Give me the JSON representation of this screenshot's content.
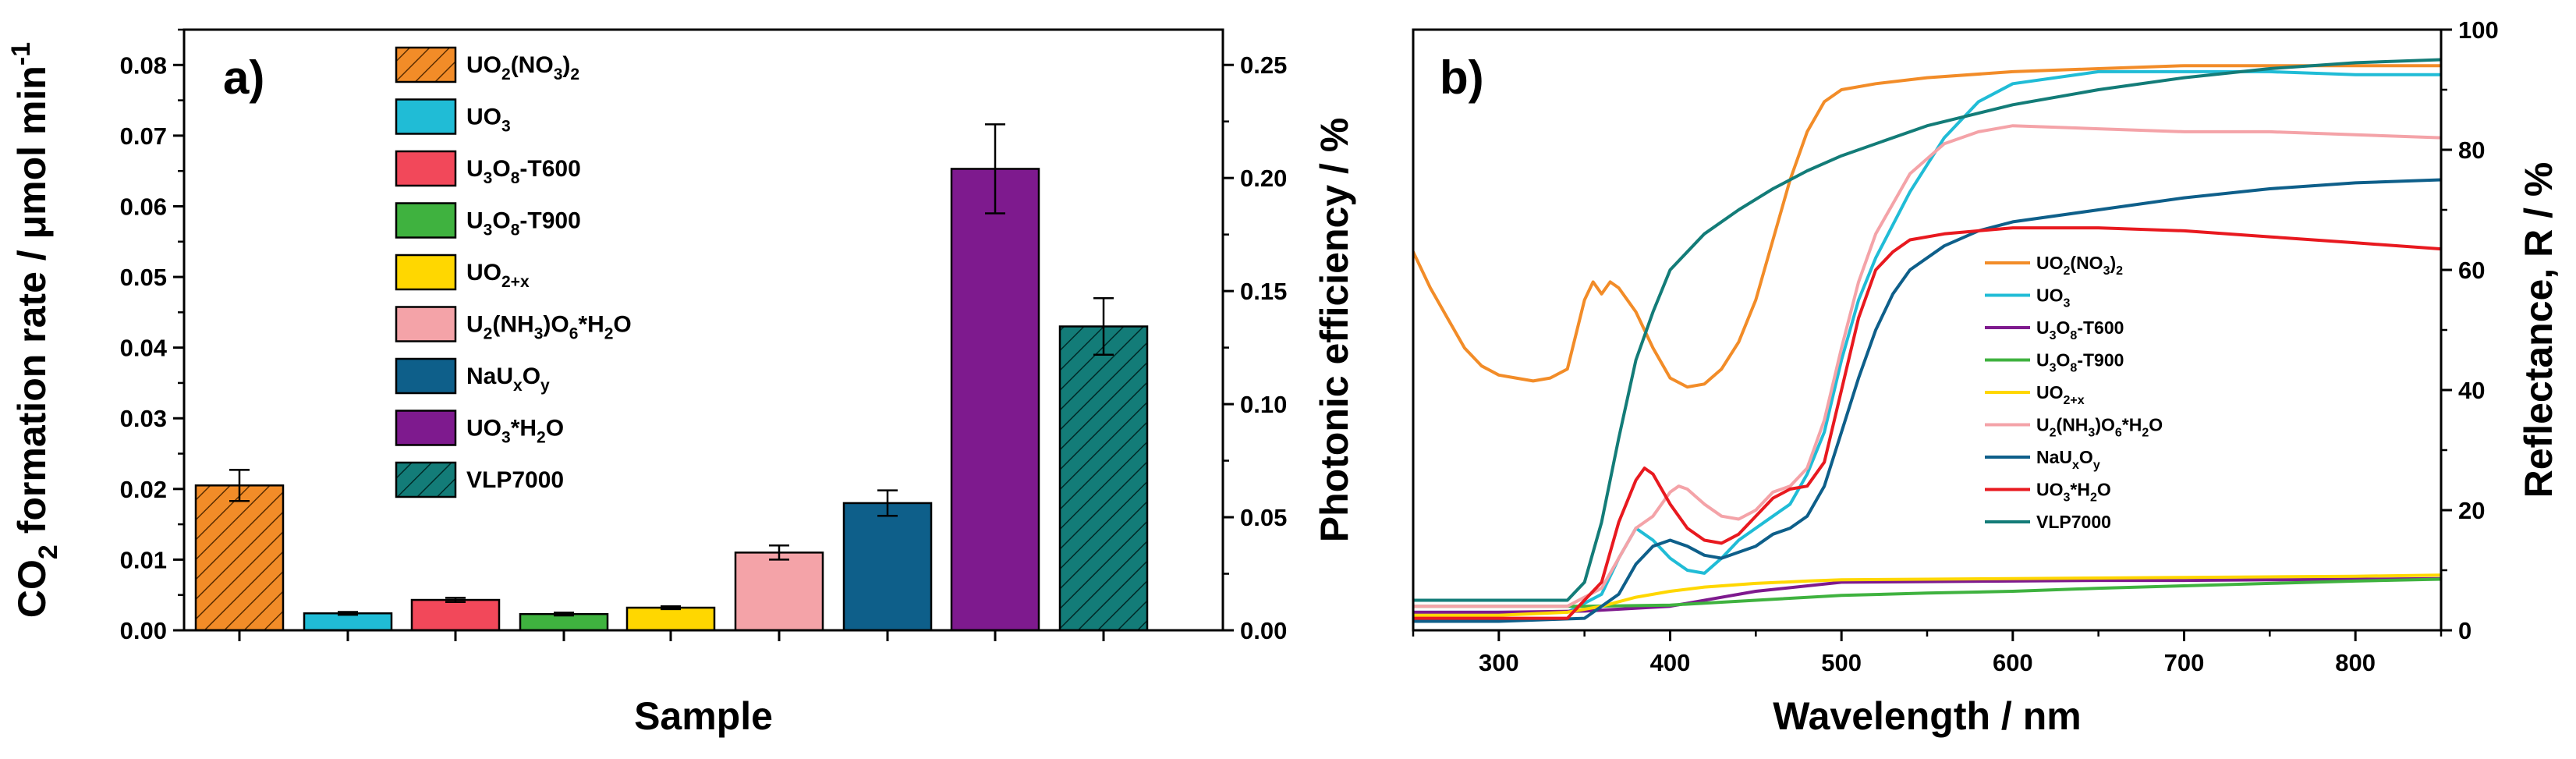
{
  "chart_data": [
    {
      "type": "bar",
      "panel_label": "a)",
      "xlabel": "Sample",
      "ylabel": "CO2 formation rate / μmol min-1",
      "ylabel_parts": [
        "CO",
        "2",
        " formation rate / μmol min",
        "-1"
      ],
      "y2label": "Photonic efficiency / %",
      "ylim": [
        0,
        0.085
      ],
      "y2lim": [
        0,
        0.2656
      ],
      "yticks": [
        "0.00",
        "0.01",
        "0.02",
        "0.03",
        "0.04",
        "0.05",
        "0.06",
        "0.07",
        "0.08"
      ],
      "y2ticks": [
        "0.00",
        "0.05",
        "0.10",
        "0.15",
        "0.20",
        "0.25"
      ],
      "bars": [
        {
          "name": "UO2(NO3)2",
          "label_parts": [
            [
              "UO",
              ""
            ],
            [
              "2",
              "sub"
            ],
            [
              "(NO",
              ""
            ],
            [
              "3",
              "sub"
            ],
            [
              ")",
              ""
            ],
            [
              "2",
              "sub"
            ]
          ],
          "value": 0.0205,
          "error": 0.0022,
          "color": "#f28c28",
          "hatch": true
        },
        {
          "name": "UO3",
          "label_parts": [
            [
              "UO",
              ""
            ],
            [
              "3",
              "sub"
            ]
          ],
          "value": 0.0024,
          "error": 0.0002,
          "color": "#20bcd6",
          "hatch": false
        },
        {
          "name": "U3O8-T600",
          "label_parts": [
            [
              "U",
              ""
            ],
            [
              "3",
              "sub"
            ],
            [
              "O",
              ""
            ],
            [
              "8",
              "sub"
            ],
            [
              "-T600",
              ""
            ]
          ],
          "value": 0.0043,
          "error": 0.0003,
          "color": "#f2485a",
          "hatch": false
        },
        {
          "name": "U3O8-T900",
          "label_parts": [
            [
              "U",
              ""
            ],
            [
              "3",
              "sub"
            ],
            [
              "O",
              ""
            ],
            [
              "8",
              "sub"
            ],
            [
              "-T900",
              ""
            ]
          ],
          "value": 0.0023,
          "error": 0.0002,
          "color": "#3fb23f",
          "hatch": false
        },
        {
          "name": "UO2+x",
          "label_parts": [
            [
              "UO",
              ""
            ],
            [
              "2+x",
              "sub"
            ]
          ],
          "value": 0.0032,
          "error": 0.0002,
          "color": "#ffd700",
          "hatch": false
        },
        {
          "name": "U2(NH3)O6*H2O",
          "label_parts": [
            [
              "U",
              ""
            ],
            [
              "2",
              "sub"
            ],
            [
              "(NH",
              ""
            ],
            [
              "3",
              "sub"
            ],
            [
              ")O",
              ""
            ],
            [
              "6",
              "sub"
            ],
            [
              "*H",
              ""
            ],
            [
              "2",
              "sub"
            ],
            [
              "O",
              ""
            ]
          ],
          "value": 0.011,
          "error": 0.001,
          "color": "#f4a3a8",
          "hatch": false
        },
        {
          "name": "NaUxOy",
          "label_parts": [
            [
              "NaU",
              ""
            ],
            [
              "x",
              "sub"
            ],
            [
              "O",
              ""
            ],
            [
              "y",
              "sub"
            ]
          ],
          "value": 0.018,
          "error": 0.0018,
          "color": "#0e5f8a",
          "hatch": false
        },
        {
          "name": "UO3*H2O",
          "label_parts": [
            [
              "UO",
              ""
            ],
            [
              "3",
              "sub"
            ],
            [
              "*H",
              ""
            ],
            [
              "2",
              "sub"
            ],
            [
              "O",
              ""
            ]
          ],
          "value": 0.0653,
          "error": 0.0063,
          "color": "#7e1a8e",
          "hatch": false
        },
        {
          "name": "VLP7000",
          "label_parts": [
            [
              "VLP7000",
              ""
            ]
          ],
          "value": 0.043,
          "error": 0.004,
          "color": "#137c78",
          "hatch": true
        }
      ]
    },
    {
      "type": "line",
      "panel_label": "b)",
      "xlabel": "Wavelength / nm",
      "ylabel": "Reflectance, R / %",
      "xlim": [
        250,
        850
      ],
      "ylim": [
        0,
        100
      ],
      "xticks": [
        "300",
        "400",
        "500",
        "600",
        "700",
        "800"
      ],
      "yticks": [
        "0",
        "20",
        "40",
        "60",
        "80",
        "100"
      ],
      "series": [
        {
          "name": "UO2(NO3)2",
          "label_parts": [
            [
              "UO",
              ""
            ],
            [
              "2",
              "sub"
            ],
            [
              "(NO",
              ""
            ],
            [
              "3",
              "sub"
            ],
            [
              ")",
              ""
            ],
            [
              "2",
              "sub"
            ]
          ],
          "color": "#f28c28",
          "x": [
            250,
            260,
            270,
            280,
            290,
            300,
            310,
            320,
            330,
            340,
            350,
            355,
            360,
            365,
            370,
            380,
            390,
            400,
            410,
            420,
            430,
            440,
            450,
            460,
            470,
            480,
            490,
            500,
            520,
            550,
            600,
            650,
            700,
            750,
            800,
            850
          ],
          "y": [
            63,
            57,
            52,
            47,
            44,
            42.5,
            42,
            41.5,
            42,
            43.5,
            55,
            58,
            56,
            58,
            57,
            53,
            47,
            42,
            40.5,
            41,
            43.5,
            48,
            55,
            65,
            75,
            83,
            88,
            90,
            91,
            92,
            93,
            93.5,
            94,
            94,
            94,
            94
          ]
        },
        {
          "name": "UO3",
          "label_parts": [
            [
              "UO",
              ""
            ],
            [
              "3",
              "sub"
            ]
          ],
          "color": "#20bcd6",
          "x": [
            250,
            300,
            340,
            360,
            370,
            380,
            390,
            400,
            410,
            420,
            430,
            440,
            450,
            460,
            470,
            480,
            490,
            500,
            510,
            520,
            540,
            560,
            580,
            600,
            650,
            700,
            750,
            800,
            850
          ],
          "y": [
            3,
            3,
            3,
            6,
            12,
            17,
            15,
            12,
            10,
            9.5,
            12,
            15,
            17,
            19,
            21,
            26,
            33,
            45,
            55,
            62,
            73,
            82,
            88,
            91,
            93,
            93,
            93,
            92.5,
            92.5
          ]
        },
        {
          "name": "U3O8-T600",
          "label_parts": [
            [
              "U",
              ""
            ],
            [
              "3",
              "sub"
            ],
            [
              "O",
              ""
            ],
            [
              "8",
              "sub"
            ],
            [
              "-T600",
              ""
            ]
          ],
          "color": "#7e1a8e",
          "x": [
            250,
            300,
            350,
            400,
            450,
            500,
            550,
            600,
            650,
            700,
            750,
            800,
            850
          ],
          "y": [
            3,
            3,
            3.2,
            4,
            6.5,
            8,
            8.1,
            8.2,
            8.3,
            8.3,
            8.4,
            8.5,
            8.6
          ]
        },
        {
          "name": "U3O8-T900",
          "label_parts": [
            [
              "U",
              ""
            ],
            [
              "3",
              "sub"
            ],
            [
              "O",
              ""
            ],
            [
              "8",
              "sub"
            ],
            [
              "-T900",
              ""
            ]
          ],
          "color": "#3fb23f",
          "x": [
            250,
            300,
            350,
            400,
            450,
            500,
            550,
            600,
            650,
            700,
            750,
            800,
            850
          ],
          "y": [
            4,
            4,
            4,
            4.2,
            5,
            5.8,
            6.2,
            6.5,
            7,
            7.4,
            7.8,
            8.2,
            8.5
          ]
        },
        {
          "name": "UO2+x",
          "label_parts": [
            [
              "UO",
              ""
            ],
            [
              "2+x",
              "sub"
            ]
          ],
          "color": "#ffd700",
          "x": [
            250,
            300,
            340,
            360,
            380,
            400,
            420,
            450,
            480,
            500,
            550,
            600,
            650,
            700,
            750,
            800,
            850
          ],
          "y": [
            2.5,
            2.5,
            3,
            4,
            5.5,
            6.5,
            7.2,
            7.8,
            8.2,
            8.4,
            8.5,
            8.6,
            8.7,
            8.8,
            8.9,
            9,
            9.2
          ]
        },
        {
          "name": "U2(NH3)O6*H2O",
          "label_parts": [
            [
              "U",
              ""
            ],
            [
              "2",
              "sub"
            ],
            [
              "(NH",
              ""
            ],
            [
              "3",
              "sub"
            ],
            [
              ")O",
              ""
            ],
            [
              "6",
              "sub"
            ],
            [
              "*H",
              ""
            ],
            [
              "2",
              "sub"
            ],
            [
              "O",
              ""
            ]
          ],
          "color": "#f4a3a8",
          "x": [
            250,
            300,
            340,
            360,
            370,
            380,
            390,
            400,
            405,
            410,
            420,
            430,
            440,
            450,
            460,
            470,
            480,
            490,
            500,
            510,
            520,
            540,
            560,
            580,
            600,
            650,
            700,
            750,
            800,
            850
          ],
          "y": [
            4,
            4,
            4,
            7,
            12,
            17,
            19,
            23,
            24,
            23.5,
            21,
            19,
            18.5,
            20,
            23,
            24,
            27,
            35,
            47,
            58,
            66,
            76,
            81,
            83,
            84,
            83.5,
            83,
            83,
            82.5,
            82
          ]
        },
        {
          "name": "NaUxOy",
          "label_parts": [
            [
              "NaU",
              ""
            ],
            [
              "x",
              "sub"
            ],
            [
              "O",
              ""
            ],
            [
              "y",
              "sub"
            ]
          ],
          "color": "#0e5f8a",
          "x": [
            250,
            300,
            350,
            370,
            380,
            390,
            400,
            410,
            420,
            430,
            440,
            450,
            460,
            470,
            480,
            490,
            500,
            510,
            520,
            530,
            540,
            560,
            580,
            600,
            650,
            700,
            750,
            800,
            850
          ],
          "y": [
            1.5,
            1.5,
            2,
            6,
            11,
            14,
            15,
            14,
            12.5,
            12,
            13,
            14,
            16,
            17,
            19,
            24,
            33,
            42,
            50,
            56,
            60,
            64,
            66.5,
            68,
            70,
            72,
            73.5,
            74.5,
            75
          ]
        },
        {
          "name": "UO3*H2O",
          "label_parts": [
            [
              "UO",
              ""
            ],
            [
              "3",
              "sub"
            ],
            [
              "*H",
              ""
            ],
            [
              "2",
              "sub"
            ],
            [
              "O",
              ""
            ]
          ],
          "color": "#e8191f",
          "x": [
            250,
            300,
            340,
            360,
            370,
            380,
            385,
            390,
            400,
            410,
            420,
            430,
            440,
            450,
            460,
            470,
            480,
            490,
            500,
            510,
            520,
            530,
            540,
            560,
            580,
            600,
            650,
            700,
            750,
            800,
            850
          ],
          "y": [
            2,
            2,
            2,
            8,
            18,
            25,
            27,
            26,
            21,
            17,
            15,
            14.5,
            16,
            19,
            22,
            23.5,
            24,
            28,
            40,
            52,
            60,
            63,
            65,
            66,
            66.5,
            67,
            67,
            66.5,
            65.5,
            64.5,
            63.5
          ]
        },
        {
          "name": "VLP7000",
          "label_parts": [
            [
              "VLP7000",
              ""
            ]
          ],
          "color": "#137c78",
          "x": [
            250,
            300,
            340,
            350,
            360,
            370,
            380,
            390,
            400,
            420,
            440,
            460,
            480,
            500,
            550,
            600,
            650,
            700,
            750,
            800,
            850
          ],
          "y": [
            5,
            5,
            5,
            8,
            18,
            32,
            45,
            53,
            60,
            66,
            70,
            73.5,
            76.5,
            79,
            84,
            87.5,
            90,
            92,
            93.5,
            94.5,
            95
          ]
        }
      ]
    }
  ]
}
